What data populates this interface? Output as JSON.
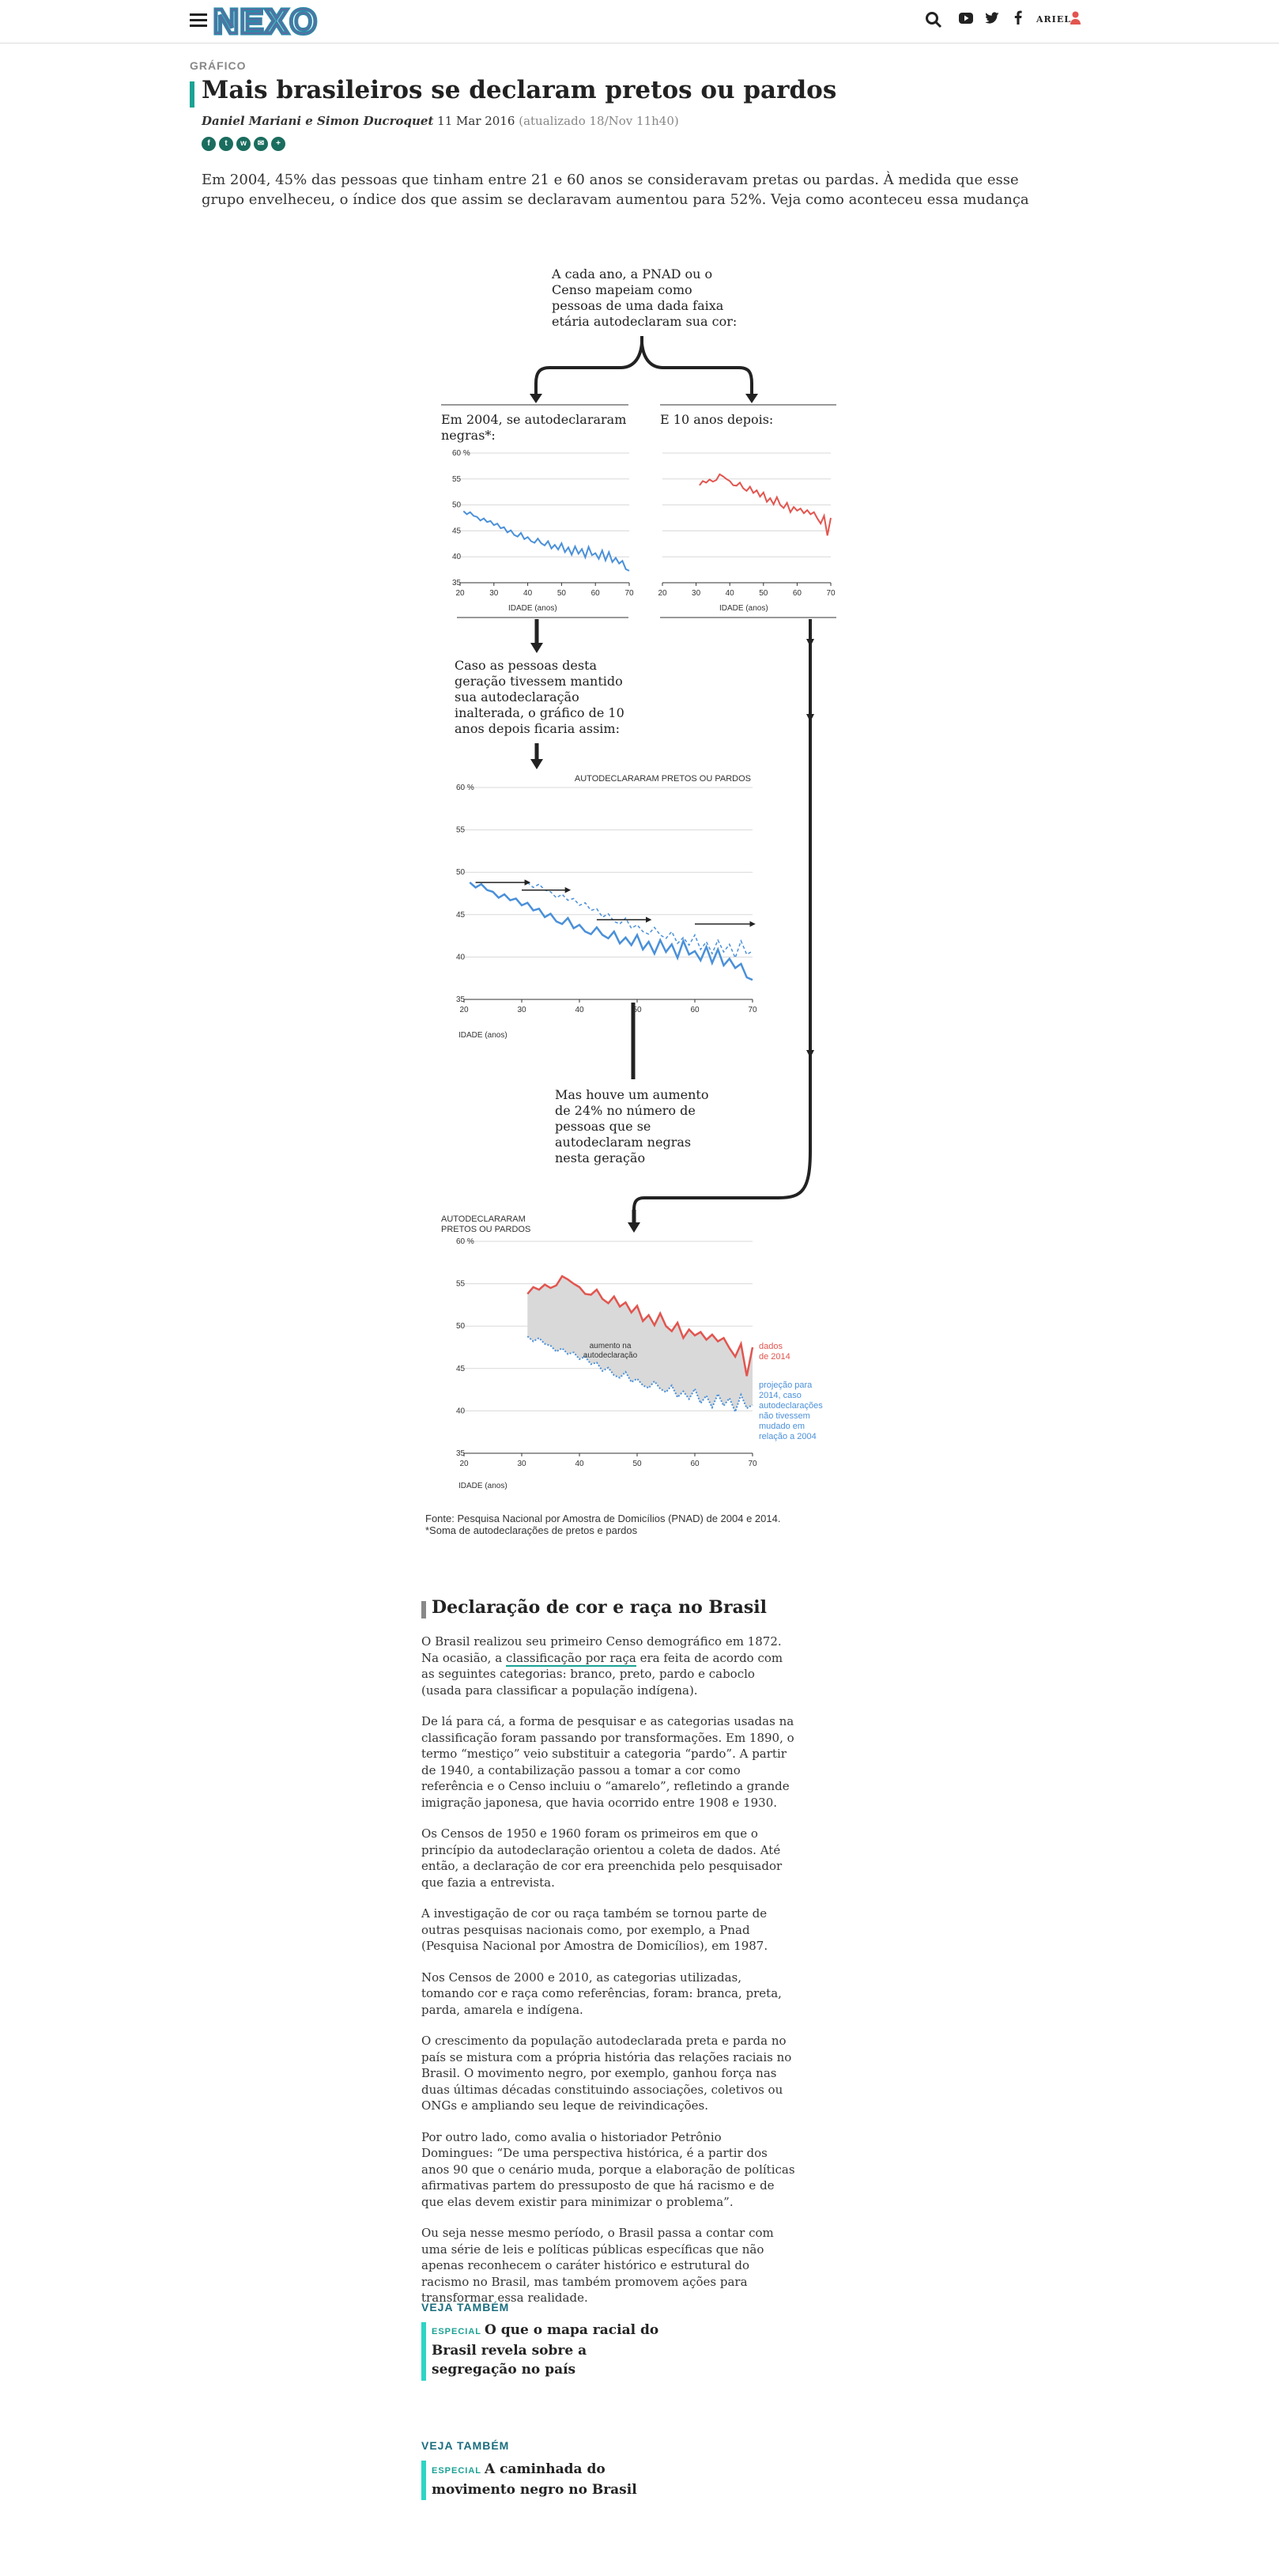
{
  "header": {
    "logo_text": "NEXO",
    "user_label": "ARIEL",
    "icons": [
      "menu-icon",
      "search-icon",
      "youtube-icon",
      "twitter-icon",
      "facebook-icon",
      "user-icon"
    ]
  },
  "article": {
    "section": "GRÁFICO",
    "title": "Mais brasileiros se declaram pretos ou pardos",
    "authors": "Daniel Mariani e Simon Ducroquet",
    "date": "11 Mar 2016",
    "updated": "(atualizado 18/Nov 11h40)",
    "share_icons": [
      "facebook-icon",
      "twitter-icon",
      "whatsapp-icon",
      "email-icon",
      "plus-icon"
    ],
    "intro": "Em 2004, 45% das pessoas que tinham entre 21 e 60 anos se consideravam pretas ou pardas. À medida que esse grupo envelheceu, o índice dos que assim se declaravam aumentou para 52%. Veja como aconteceu essa mudança"
  },
  "graphic": {
    "intro_lines": [
      "A cada ano, a PNAD ou o",
      "Censo mapeiam como",
      "pessoas de uma dada faixa",
      "etária autodeclaram sua cor:"
    ],
    "left_title_lines": [
      "Em 2004, se autodeclararam",
      "negras*:"
    ],
    "right_title": "E 10 anos depois:",
    "xlabel": "IDADE (anos)",
    "mid_text_lines": [
      "Caso as pessoas desta",
      "geração tivessem mantido",
      "sua autodeclaração",
      "inalterada, o gráfico de 10",
      "anos depois ficaria assim:"
    ],
    "chart3_ylabel": "AUTODECLARARAM PRETOS OU PARDOS",
    "but_text_lines": [
      "Mas houve um aumento",
      "de 24% no número de",
      "pessoas que se",
      "autodeclaram negras",
      "nesta geração"
    ],
    "chart4_ylabel_lines": [
      "AUTODECLARARAM",
      "PRETOS OU PARDOS"
    ],
    "area_label_lines": [
      "aumento na",
      "autodeclaração"
    ],
    "label_2014_lines": [
      "dados",
      "de 2014"
    ],
    "label_proj_lines": [
      "projeção para",
      "2014, caso",
      "autodeclarações",
      "não tivessem",
      "mudado em",
      "relação a 2004"
    ],
    "source_lines": [
      "Fonte: Pesquisa Nacional por Amostra de Domicílios (PNAD) de 2004 e 2014.",
      "*Soma de autodeclarações de pretos e pardos"
    ],
    "colors": {
      "series_2004": "#4a90d9",
      "series_2014": "#e2554f",
      "area": "#d9d9d9",
      "arrows": "#222222"
    }
  },
  "chart_data": [
    {
      "type": "line",
      "title": "Em 2004, se autodeclararam negras*:",
      "xlabel": "IDADE (anos)",
      "x": [
        21,
        22,
        23,
        24,
        25,
        26,
        27,
        28,
        29,
        30,
        31,
        32,
        33,
        34,
        35,
        36,
        37,
        38,
        39,
        40,
        41,
        42,
        43,
        44,
        45,
        46,
        47,
        48,
        49,
        50,
        51,
        52,
        53,
        54,
        55,
        56,
        57,
        58,
        59,
        60,
        61,
        62,
        63,
        64,
        65,
        66,
        67,
        68,
        69,
        70
      ],
      "series": [
        {
          "values": [
            48.8,
            48.2,
            48.6,
            47.9,
            47.7,
            47.0,
            47.4,
            46.7,
            46.9,
            46.1,
            46.4,
            45.5,
            45.7,
            44.7,
            45.1,
            44.2,
            43.9,
            44.6,
            43.4,
            43.8,
            43.0,
            42.7,
            43.5,
            42.6,
            42.2,
            43.0,
            41.6,
            42.3,
            41.4,
            42.6,
            40.9,
            41.8,
            40.4,
            42.0,
            40.6,
            41.5,
            39.9,
            41.9,
            40.3,
            40.7,
            39.6,
            41.2,
            39.3,
            40.9,
            39.0,
            39.8,
            38.7,
            39.2,
            37.6,
            37.3
          ]
        }
      ],
      "ylim": [
        35,
        60
      ],
      "yticks": [
        35,
        40,
        45,
        50,
        55,
        60
      ],
      "ytick_suffix": "%",
      "xlim": [
        20,
        70
      ],
      "xticks": [
        20,
        30,
        40,
        50,
        60,
        70
      ],
      "grid": true
    },
    {
      "type": "line",
      "title": "E 10 anos depois:",
      "xlabel": "IDADE (anos)",
      "x": [
        31,
        32,
        33,
        34,
        35,
        36,
        37,
        38,
        39,
        40,
        41,
        42,
        43,
        44,
        45,
        46,
        47,
        48,
        49,
        50,
        51,
        52,
        53,
        54,
        55,
        56,
        57,
        58,
        59,
        60,
        61,
        62,
        63,
        64,
        65,
        66,
        67,
        68,
        69,
        70
      ],
      "series": [
        {
          "values": [
            53.8,
            54.6,
            54.3,
            54.9,
            54.5,
            54.8,
            55.9,
            55.5,
            55.0,
            54.6,
            53.8,
            53.7,
            54.3,
            53.2,
            52.7,
            53.5,
            52.3,
            52.8,
            51.6,
            52.4,
            50.6,
            51.3,
            50.1,
            51.5,
            50.0,
            49.4,
            50.4,
            48.6,
            49.6,
            48.9,
            49.3,
            48.4,
            49.0,
            48.2,
            48.6,
            47.4,
            46.4,
            47.9,
            44.1,
            47.5
          ]
        }
      ],
      "ylim": [
        35,
        60
      ],
      "yticks": [
        35,
        40,
        45,
        50,
        55,
        60
      ],
      "xlim": [
        20,
        70
      ],
      "xticks": [
        20,
        30,
        40,
        50,
        60,
        70
      ],
      "grid": true
    },
    {
      "type": "line",
      "ylabel": "AUTODECLARARAM PRETOS OU PARDOS",
      "xlabel": "IDADE (anos)",
      "series": [
        {
          "x_from": "chart_data.0.x",
          "values_from": "chart_data.0.series.0.values"
        },
        {
          "x_offset": 10,
          "values_from": "chart_data.0.series.0.values",
          "style": "dashed"
        }
      ],
      "ylim": [
        35,
        60
      ],
      "yticks": [
        35,
        40,
        45,
        50,
        55,
        60
      ],
      "ytick_suffix": "%",
      "xlim": [
        20,
        70
      ],
      "xticks": [
        20,
        30,
        40,
        50,
        60,
        70
      ],
      "grid": true
    },
    {
      "type": "area",
      "ylabel": "AUTODECLARARAM PRETOS OU PARDOS",
      "xlabel": "IDADE (anos)",
      "series": [
        {
          "name": "dados de 2014",
          "values_from": "chart_data.1.series.0.values"
        },
        {
          "name": "projeção para 2014, caso autodeclarações não tivessem mudado em relação a 2004",
          "x_offset": 10,
          "values_from": "chart_data.0.series.0.values",
          "style": "dotted"
        }
      ],
      "annotation": "aumento na autodeclaração",
      "ylim": [
        35,
        60
      ],
      "yticks": [
        35,
        40,
        45,
        50,
        55,
        60
      ],
      "ytick_suffix": "%",
      "xlim": [
        20,
        70
      ],
      "xticks": [
        20,
        30,
        40,
        50,
        60,
        70
      ],
      "grid": true
    }
  ],
  "declaracao": {
    "title": "Declaração de cor e raça no Brasil",
    "p1_before": "O Brasil realizou seu primeiro Censo demográfico em 1872. Na ocasião, a ",
    "p1_link": "classificação por raça",
    "p1_after": " era feita de acordo com as seguintes categorias: branco, preto, pardo e caboclo (usada para classificar a população indígena).",
    "p2": "De lá para cá, a forma de pesquisar e as categorias usadas na classificação foram passando por transformações. Em 1890, o termo “mestiço” veio substituir a categoria “pardo”. A partir de 1940, a contabilização passou a tomar a cor como referência e o Censo incluiu o “amarelo”, refletindo a grande imigração japonesa, que havia ocorrido entre 1908 e 1930.",
    "p3": "Os Censos de 1950 e 1960 foram os primeiros em que o princípio da autodeclaração orientou a coleta de dados. Até então, a declaração de cor era preenchida pelo pesquisador que fazia a entrevista.",
    "p4": "A investigação de cor ou raça também se tornou parte de outras pesquisas nacionais como, por exemplo, a Pnad (Pesquisa Nacional por Amostra de Domicílios),  em 1987.",
    "p5": "Nos Censos de 2000 e 2010, as categorias utilizadas, tomando cor e raça como referências, foram: branca, preta, parda, amarela e indígena.",
    "p6": "O crescimento da população autodeclarada preta e parda no país se mistura com a própria história das relações raciais no Brasil. O movimento negro, por exemplo, ganhou força nas duas últimas décadas constituindo associações, coletivos ou ONGs e ampliando seu leque de reivindicações.",
    "p7": "Por outro lado, como avalia o historiador Petrônio Domingues: “De uma perspectiva histórica, é a partir dos anos 90 que o cenário muda, porque a elaboração de políticas afirmativas partem do pressuposto de que há racismo e de que elas devem existir para minimizar o problema”.",
    "p8": "Ou seja nesse mesmo período, o Brasil passa a contar com uma série de leis e políticas públicas específicas que não apenas reconhecem o caráter histórico e estrutural do racismo no Brasil, mas também promovem ações para transformar essa realidade."
  },
  "related": [
    {
      "label": "VEJA TAMBÉM",
      "tag": "ESPECIAL",
      "title": "O que o mapa racial do Brasil revela sobre a segregação no país"
    },
    {
      "label": "VEJA TAMBÉM",
      "tag": "ESPECIAL",
      "title": "A caminhada do movimento negro no Brasil"
    }
  ]
}
